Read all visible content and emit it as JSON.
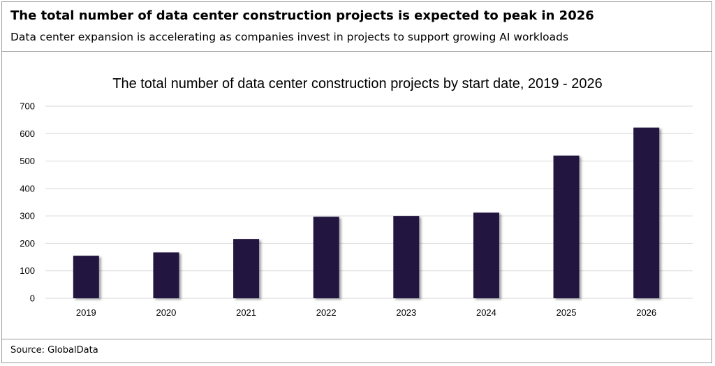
{
  "header": {
    "title": "The total number of data center construction projects is expected to peak in 2026",
    "subtitle": "Data center expansion is accelerating as companies invest in projects to support growing AI workloads"
  },
  "footer": {
    "source": "Source: GlobalData"
  },
  "chart_data": {
    "type": "bar",
    "title": "The total number of data center construction projects by start date, 2019 - 2026",
    "xlabel": "",
    "ylabel": "",
    "categories": [
      "2019",
      "2020",
      "2021",
      "2022",
      "2023",
      "2024",
      "2025",
      "2026"
    ],
    "values": [
      155,
      167,
      216,
      297,
      300,
      312,
      520,
      622
    ],
    "ylim": [
      0,
      700
    ],
    "yticks": [
      "0",
      "100",
      "200",
      "300",
      "400",
      "500",
      "600",
      "700"
    ],
    "grid": true,
    "legend": "none",
    "bar_color": "#22123f"
  }
}
